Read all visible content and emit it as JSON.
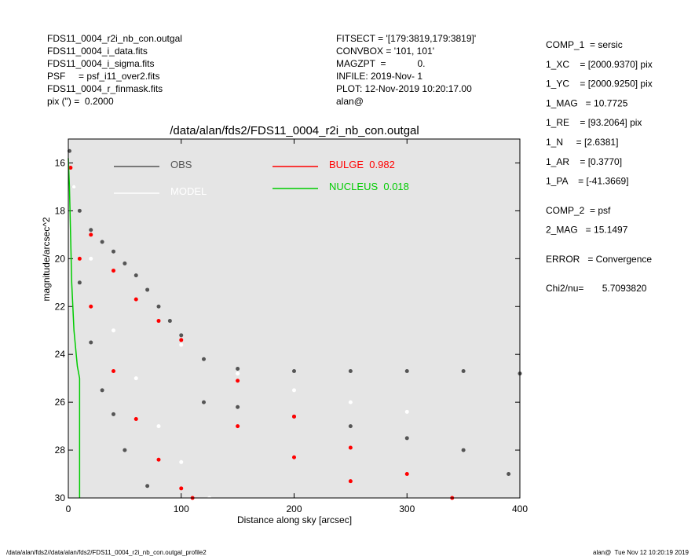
{
  "header": {
    "left": [
      "FDS11_0004_r2i_nb_con.outgal",
      "FDS11_0004_i_data.fits",
      "FDS11_0004_i_sigma.fits",
      "PSF     = psf_i11_over2.fits",
      "FDS11_0004_r_finmask.fits",
      "pix (\") =  0.2000"
    ],
    "center": [
      "FITSECT = '[179:3819,179:3819]'",
      "CONVBOX = '101, 101'",
      "MAGZPT  =            0.",
      "INFILE: 2019-Nov- 1",
      "PLOT: 12-Nov-2019 10:20:17.00",
      "alan@"
    ]
  },
  "fit_summary": [
    [
      "COMP_1  = sersic",
      "1_XC    = [2000.9370] pix",
      "1_YC    = [2000.9250] pix",
      "1_MAG   = 10.7725",
      "1_RE    = [93.2064] pix",
      "1_N     = [2.6381]",
      "1_AR    = [0.3770]",
      "1_PA    = [-41.3669]"
    ],
    [
      "COMP_2  = psf",
      "2_MAG   = 15.1497"
    ],
    [
      "ERROR   = Convergence"
    ],
    [
      "Chi2/nu=       5.7093820"
    ]
  ],
  "footer": {
    "left": "/data/alan/fds2//data/alan/fds2/FDS11_0004_r2i_nb_con.outgal_profile2",
    "right": "alan@  Tue Nov 12 10:20:19 2019"
  },
  "chart_data": {
    "type": "scatter",
    "title": "/data/alan/fds2/FDS11_0004_r2i_nb_con.outgal",
    "x_label": "Distance along sky [arcsec]",
    "y_label": "magnitude/arcsec^2",
    "xlim": [
      0,
      400
    ],
    "xticks": [
      0,
      100,
      200,
      300,
      400
    ],
    "ylim": [
      30,
      15
    ],
    "yticks": [
      16,
      18,
      20,
      22,
      24,
      26,
      28,
      30
    ],
    "series": [
      {
        "name": "OBS",
        "color": "#555555",
        "style": "points",
        "x": [
          1,
          5,
          10,
          20,
          30,
          40,
          50,
          60,
          70,
          80,
          90,
          100,
          120,
          150,
          200,
          250,
          300,
          350,
          400,
          10,
          20,
          30,
          40,
          50,
          70,
          120,
          150,
          200,
          250,
          300,
          350,
          390
        ],
        "values": [
          15.5,
          17,
          18,
          18.8,
          19.3,
          19.7,
          20.2,
          20.7,
          21.3,
          22,
          22.6,
          23.2,
          24.2,
          24.6,
          24.7,
          24.7,
          24.7,
          24.7,
          24.8,
          21,
          23.5,
          25.5,
          26.5,
          28,
          29.5,
          26,
          26.2,
          26.6,
          27,
          27.5,
          28,
          29
        ]
      },
      {
        "name": "MODEL",
        "color": "#ffffff",
        "style": "points",
        "x": [
          5,
          20,
          40,
          60,
          80,
          100,
          125,
          100,
          150,
          200,
          250,
          300
        ],
        "values": [
          17,
          20,
          23,
          25,
          27,
          28.5,
          30,
          23.6,
          24.8,
          25.5,
          26,
          26.4
        ]
      },
      {
        "name": "BULGE  0.982",
        "color": "#ff0000",
        "style": "points",
        "x": [
          2,
          20,
          40,
          60,
          80,
          100,
          150,
          200,
          250,
          300,
          340,
          10,
          20,
          40,
          60,
          80,
          100,
          110,
          150,
          200,
          250
        ],
        "values": [
          16.2,
          19,
          20.5,
          21.7,
          22.6,
          23.4,
          25.1,
          26.6,
          27.9,
          29,
          30,
          20,
          22,
          24.7,
          26.7,
          28.4,
          29.6,
          30,
          27,
          28.3,
          29.3
        ]
      },
      {
        "name": "NUCLEUS  0.018",
        "color": "#00cc00",
        "style": "line",
        "x": [
          0,
          1,
          2,
          3,
          5,
          8,
          10,
          10
        ],
        "values": [
          15.8,
          17,
          19,
          21,
          23,
          24.5,
          25,
          30
        ]
      }
    ]
  }
}
